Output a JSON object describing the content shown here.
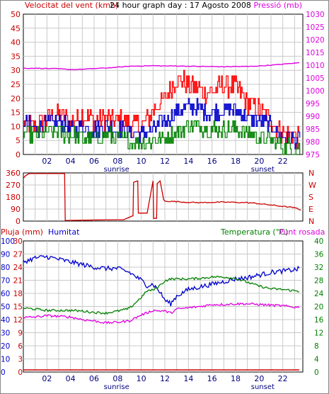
{
  "chart_data": [
    {
      "type": "line",
      "title": "24 hour graph day : 17 Agosto 2008",
      "ylabel_left": "Velocitat del vent (kmh)",
      "ylabel_right": "Pressió (mb)",
      "x_ticks": [
        "02",
        "04",
        "06",
        "08",
        "10",
        "12",
        "14",
        "16",
        "18",
        "20",
        "22"
      ],
      "x_markers": [
        "sunrise",
        "sunset"
      ],
      "ylim_left": [
        0,
        50
      ],
      "yticks_left": [
        "0",
        "5",
        "10",
        "15",
        "20",
        "25",
        "30",
        "35",
        "40",
        "45",
        "50"
      ],
      "ylim_right": [
        975,
        1030
      ],
      "yticks_right": [
        "975",
        "980",
        "985",
        "990",
        "995",
        "1000",
        "1005",
        "1010",
        "1015",
        "1020",
        "1025",
        "1030"
      ],
      "grid": true,
      "series": [
        {
          "name": "Pressió (mb)",
          "axis": "right",
          "color": "#e000e0",
          "x": [
            0,
            1,
            2,
            3,
            4,
            5,
            6,
            7,
            8,
            9,
            10,
            11,
            12,
            13,
            14,
            15,
            16,
            17,
            18,
            19,
            20,
            21,
            22,
            23.5
          ],
          "values": [
            1008.8,
            1008.8,
            1008.7,
            1008.6,
            1008.3,
            1008.4,
            1008.7,
            1008.9,
            1009.2,
            1009.6,
            1009.7,
            1009.8,
            1009.7,
            1009.7,
            1009.6,
            1009.5,
            1009.5,
            1009.4,
            1009.5,
            1009.5,
            1009.7,
            1010.0,
            1010.4,
            1011.0
          ]
        },
        {
          "name": "",
          "axis": "left",
          "color": "#ff0000",
          "x": [
            0,
            1,
            2,
            3,
            4,
            5,
            6,
            7,
            8,
            9,
            10,
            11,
            12,
            13,
            14,
            15,
            16,
            17,
            18,
            19,
            20,
            21,
            22,
            23.5
          ],
          "values": [
            11,
            10,
            13,
            15,
            11,
            14,
            12,
            13,
            12,
            11,
            10,
            16,
            20,
            27,
            25,
            23,
            22,
            25,
            24,
            18,
            16,
            12,
            8,
            6
          ]
        },
        {
          "name": "",
          "axis": "left",
          "color": "#0000cc",
          "x": [
            0,
            1,
            2,
            3,
            4,
            5,
            6,
            7,
            8,
            9,
            10,
            11,
            12,
            13,
            14,
            15,
            16,
            17,
            18,
            19,
            20,
            21,
            22,
            23.5
          ],
          "values": [
            12,
            9,
            11,
            12,
            9,
            10,
            9,
            10,
            9,
            8,
            7,
            9,
            12,
            15,
            17,
            16,
            15,
            16,
            16,
            13,
            12,
            10,
            6,
            5
          ]
        },
        {
          "name": "",
          "axis": "left",
          "color": "#008000",
          "x": [
            0,
            1,
            2,
            3,
            4,
            5,
            6,
            7,
            8,
            9,
            10,
            11,
            12,
            13,
            14,
            15,
            16,
            17,
            18,
            19,
            20,
            21,
            22,
            23.5
          ],
          "values": [
            8,
            6,
            8,
            8,
            7,
            6,
            5,
            7,
            6,
            5,
            4,
            5,
            6,
            8,
            10,
            10,
            9,
            9,
            9,
            8,
            6,
            5,
            3,
            2
          ]
        }
      ]
    },
    {
      "type": "line",
      "ylabel_left": "",
      "yticks_left": [
        "0",
        "90",
        "180",
        "270",
        "360"
      ],
      "ylim_left": [
        0,
        360
      ],
      "labels_right": [
        "N",
        "W",
        "S",
        "E",
        "N"
      ],
      "x_ticks": [],
      "grid": true,
      "series": [
        {
          "name": "",
          "color": "#cc0000",
          "x": [
            0,
            0.2,
            0.5,
            3.5,
            3.55,
            7.5,
            8.5,
            9.3,
            9.35,
            9.7,
            9.75,
            10.5,
            11,
            11.05,
            11.3,
            11.35,
            11.6,
            11.9,
            12,
            13,
            14,
            15,
            16,
            17,
            18,
            19,
            20,
            21,
            22,
            23,
            23.5
          ],
          "values": [
            320,
            340,
            355,
            355,
            5,
            10,
            10,
            40,
            290,
            300,
            60,
            60,
            300,
            20,
            20,
            280,
            300,
            160,
            150,
            145,
            140,
            138,
            140,
            142,
            140,
            138,
            130,
            120,
            110,
            100,
            85
          ]
        }
      ]
    },
    {
      "type": "line",
      "ylabel_left": "Pluja (mm)",
      "ylabel_left2": "Humitat",
      "ylabel_right": "Temperatura (°C)",
      "ylabel_right2": "Punt rosada",
      "ylim_left": [
        0,
        30
      ],
      "yticks_left": [
        "0",
        "3",
        "6",
        "9",
        "12",
        "15",
        "18",
        "21",
        "24",
        "27",
        "30"
      ],
      "ylim_left2": [
        0,
        100
      ],
      "yticks_left2": [
        "0",
        "10",
        "20",
        "30",
        "40",
        "50",
        "60",
        "70",
        "80",
        "90",
        "100"
      ],
      "ylim_right": [
        0,
        40
      ],
      "yticks_right": [
        "0",
        "4",
        "8",
        "12",
        "16",
        "20",
        "24",
        "28",
        "32",
        "36",
        "40"
      ],
      "x_ticks": [
        "02",
        "04",
        "06",
        "08",
        "10",
        "12",
        "14",
        "16",
        "18",
        "20",
        "22"
      ],
      "x_markers": [
        "sunrise",
        "sunset"
      ],
      "grid": true,
      "series": [
        {
          "name": "Pluja (mm)",
          "axis": "left",
          "color": "#cc0000",
          "x": [
            0,
            23.5
          ],
          "values": [
            0,
            0
          ]
        },
        {
          "name": "Humitat",
          "axis": "left2",
          "color": "#0000cc",
          "x": [
            0,
            1,
            2,
            3,
            4,
            5,
            6,
            7,
            8,
            9,
            10,
            10.5,
            11,
            11.5,
            12,
            12.5,
            13,
            14,
            15,
            16,
            17,
            18,
            19,
            20,
            21,
            22,
            23,
            23.5
          ],
          "values": [
            84,
            87,
            88,
            86,
            84,
            82,
            80,
            79,
            79,
            76,
            70,
            66,
            67,
            62,
            55,
            52,
            58,
            63,
            65,
            67,
            69,
            71,
            72,
            74,
            76,
            77,
            78,
            79
          ]
        },
        {
          "name": "Temperatura (°C)",
          "axis": "right",
          "color": "#008000",
          "x": [
            0,
            1,
            2,
            3,
            4,
            5,
            6,
            7,
            8,
            9,
            10,
            10.5,
            11,
            11.5,
            12,
            12.5,
            13,
            14,
            15,
            16,
            17,
            18,
            19,
            20,
            21,
            22,
            23,
            23.5
          ],
          "values": [
            19.5,
            19.2,
            18.8,
            18.8,
            18.8,
            18.6,
            18.2,
            18.0,
            18.6,
            19.4,
            22.8,
            24.8,
            25.0,
            26.2,
            27.8,
            28.4,
            28.4,
            28.4,
            28.6,
            29.0,
            29.0,
            28.6,
            27.4,
            26.2,
            25.4,
            25.2,
            24.8,
            24.6
          ]
        },
        {
          "name": "Punt rosada",
          "axis": "right",
          "color": "#e000e0",
          "x": [
            0,
            1,
            2,
            3,
            4,
            5,
            6,
            7,
            8,
            9,
            10,
            11,
            12,
            12.5,
            13,
            14,
            15,
            16,
            17,
            18,
            19,
            20,
            21,
            22,
            23,
            23.5
          ],
          "values": [
            16.6,
            16.8,
            17.2,
            17.0,
            16.8,
            16.0,
            15.6,
            15.0,
            15.2,
            15.6,
            17.4,
            18.8,
            18.6,
            18.0,
            19.2,
            19.6,
            20.0,
            20.6,
            20.6,
            20.8,
            20.8,
            20.6,
            20.4,
            20.2,
            19.8,
            19.8
          ]
        }
      ]
    }
  ]
}
